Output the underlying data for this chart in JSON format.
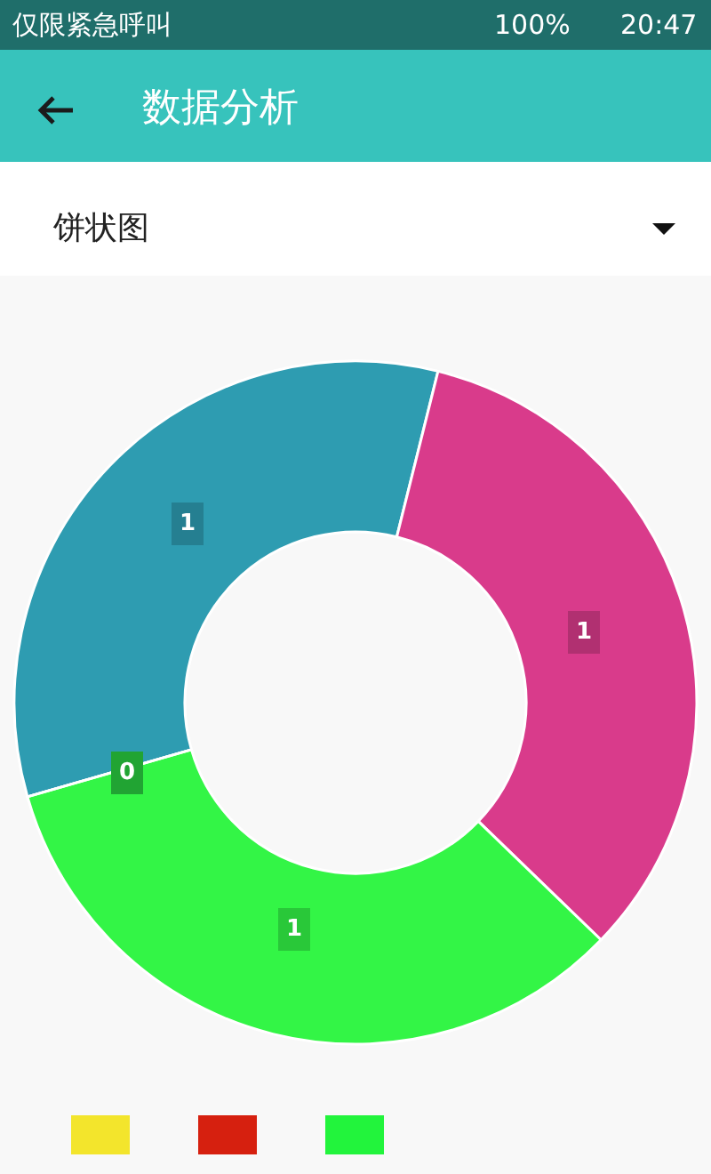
{
  "chart_data": {
    "type": "donut",
    "title": "数据分析",
    "subtitle": "饼状图",
    "annotations": [
      "仅限紧急呼叫",
      "100%",
      "20:47"
    ],
    "categories": [
      null,
      null,
      null,
      null
    ],
    "values": [
      1,
      1,
      1,
      0
    ],
    "value_labels": [
      "1",
      "1",
      "1",
      "0"
    ],
    "colors": [
      "#2e9cb1",
      "#d93b8b",
      "#33f546",
      "#29c93f"
    ]
  }
}
